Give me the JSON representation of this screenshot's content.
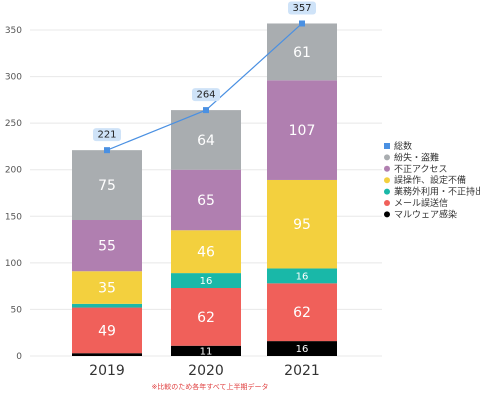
{
  "colors": {
    "total_line": "#4a90e2",
    "total_bubble": "#cfe3f8",
    "grid": "#e8e8e8"
  },
  "chart_data": {
    "type": "bar",
    "stacked": true,
    "categories": [
      "2019",
      "2020",
      "2021"
    ],
    "ylim": [
      0,
      350
    ],
    "yticks": [
      0,
      50,
      100,
      150,
      200,
      250,
      300,
      350
    ],
    "grid": true,
    "legend_position": "right",
    "series": [
      {
        "name": "マルウェア感染",
        "values": [
          3,
          11,
          16
        ],
        "color": "#000000",
        "labels": [
          "",
          "11",
          "16"
        ]
      },
      {
        "name": "メール誤送信",
        "values": [
          49,
          62,
          62
        ],
        "color": "#f0605a",
        "labels": [
          "49",
          "62",
          "62"
        ]
      },
      {
        "name": "業務外利用・不正持出",
        "values": [
          4,
          16,
          16
        ],
        "color": "#19b8a8",
        "labels": [
          "",
          "16",
          "16"
        ]
      },
      {
        "name": "誤操作、設定不備",
        "values": [
          35,
          46,
          95
        ],
        "color": "#f3d03e",
        "labels": [
          "35",
          "46",
          "95"
        ]
      },
      {
        "name": "不正アクセス",
        "values": [
          55,
          65,
          107
        ],
        "color": "#b07fb0",
        "labels": [
          "55",
          "65",
          "107"
        ]
      },
      {
        "name": "紛失・盗難",
        "values": [
          75,
          64,
          61
        ],
        "color": "#a9adb0",
        "labels": [
          "75",
          "64",
          "61"
        ]
      }
    ],
    "total": {
      "name": "総数",
      "values": [
        221,
        264,
        357
      ],
      "labels": [
        "221",
        "264",
        "357"
      ]
    },
    "legend_order": [
      "総数",
      "紛失・盗難",
      "不正アクセス",
      "誤操作、設定不備",
      "業務外利用・不正持出",
      "メール誤送信",
      "マルウェア感染"
    ],
    "footnote": "※比較のため各年すべて上半期データ"
  }
}
